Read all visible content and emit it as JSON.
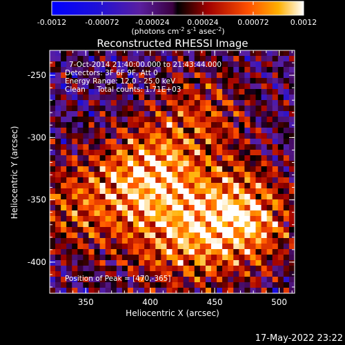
{
  "colorbar": {
    "ticks": [
      "-0.0012",
      "-0.00072",
      "-0.00024",
      "0.00024",
      "0.00072",
      "0.0012"
    ],
    "units_prefix": "(photons cm",
    "units_exp1": "-2",
    "units_mid": " s",
    "units_exp2": "-1",
    "units_mid2": " asec",
    "units_exp3": "-2",
    "units_suffix": ")"
  },
  "plot": {
    "title": "Reconstructed RHESSI Image",
    "xlabel": "Heliocentric X (arcsec)",
    "ylabel": "Heliocentric Y (arcsec)",
    "x_ticks": [
      "350",
      "400",
      "450",
      "500"
    ],
    "y_ticks": [
      "-250",
      "-300",
      "-350",
      "-400"
    ],
    "info_lines": [
      "7-Oct-2014 21:40:00.000 to 21:43:44.000",
      "Detectors: 3F 6F 9F, Att 0",
      "Energy Range: 12.0 - 25.0 keV",
      "Clean     Total counts: 1.71E+03"
    ],
    "peak_text": "Position of Peak = [470,-365]"
  },
  "footer": {
    "date": "17-May-2022 23:22"
  },
  "chart_data": {
    "type": "heatmap",
    "title": "Reconstructed RHESSI Image",
    "xlabel": "Heliocentric X (arcsec)",
    "ylabel": "Heliocentric Y (arcsec)",
    "xlim": [
      322,
      512
    ],
    "ylim": [
      -425,
      -230
    ],
    "colorscale_range": [
      -0.0012,
      0.0012
    ],
    "colorscale_units": "photons cm^-2 s^-1 asec^-2",
    "peak_position": [
      470,
      -365
    ],
    "sources": [
      {
        "x": 470,
        "y": -365,
        "strength": 1.0
      },
      {
        "x": 400,
        "y": -330,
        "strength": 0.85
      },
      {
        "x": 420,
        "y": -385,
        "strength": 0.6
      },
      {
        "x": 345,
        "y": -355,
        "strength": 0.55
      },
      {
        "x": 440,
        "y": -280,
        "strength": 0.45
      }
    ],
    "colors": {
      "low": "#0000ff",
      "mid_low": "#5a1fa0",
      "mid": "#b40000",
      "mid_high": "#ff4000",
      "high": "#ffa000",
      "max": "#ffffff"
    }
  }
}
